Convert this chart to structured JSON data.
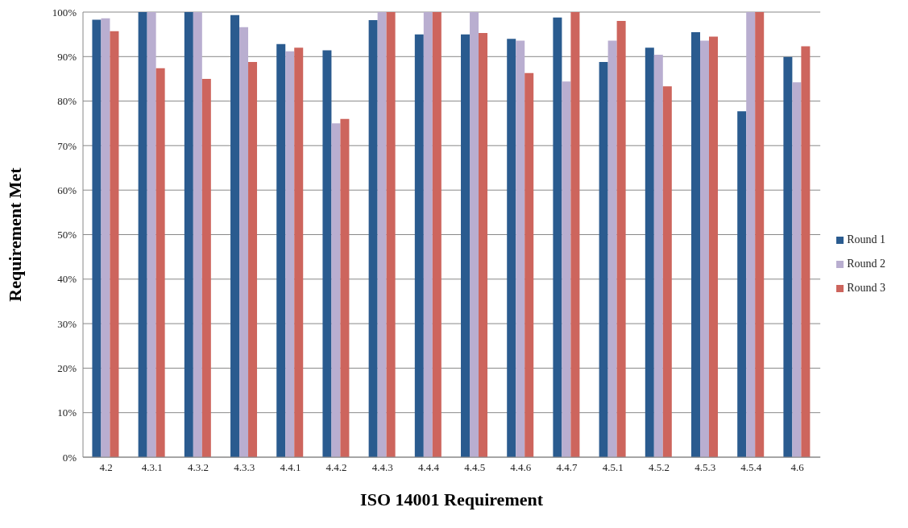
{
  "chart_data": {
    "type": "bar",
    "xlabel": "ISO 14001 Requirement",
    "ylabel": "Requirement Met",
    "categories": [
      "4.2",
      "4.3.1",
      "4.3.2",
      "4.3.3",
      "4.4.1",
      "4.4.2",
      "4.4.3",
      "4.4.4",
      "4.4.5",
      "4.4.6",
      "4.4.7",
      "4.5.1",
      "4.5.2",
      "4.5.3",
      "4.5.4",
      "4.6"
    ],
    "series": [
      {
        "name": "Round 1",
        "color": "#2a5b8f",
        "values": [
          98.3,
          100,
          100,
          99.3,
          92.8,
          91.4,
          98.2,
          95,
          95,
          94,
          98.8,
          88.8,
          92,
          95.5,
          77.7,
          89.9
        ]
      },
      {
        "name": "Round 2",
        "color": "#b9aed0",
        "values": [
          98.6,
          100,
          100,
          96.6,
          91.2,
          75,
          100,
          100,
          100,
          93.6,
          84.4,
          93.6,
          90.4,
          93.6,
          100,
          84.2
        ]
      },
      {
        "name": "Round 3",
        "color": "#cd655d",
        "values": [
          95.7,
          87.4,
          85,
          88.8,
          92,
          76,
          100,
          100,
          95.3,
          86.3,
          100,
          98,
          83.3,
          94.5,
          100,
          92.3
        ]
      }
    ],
    "ylim": [
      0,
      100
    ],
    "yticks": [
      {
        "value": 0,
        "label": "0%"
      },
      {
        "value": 10,
        "label": "10%"
      },
      {
        "value": 20,
        "label": "20%"
      },
      {
        "value": 30,
        "label": "30%"
      },
      {
        "value": 40,
        "label": "40%"
      },
      {
        "value": 50,
        "label": "50%"
      },
      {
        "value": 60,
        "label": "60%"
      },
      {
        "value": 70,
        "label": "70%"
      },
      {
        "value": 80,
        "label": "80%"
      },
      {
        "value": 90,
        "label": "90%"
      },
      {
        "value": 100,
        "label": "100%"
      }
    ],
    "grid": "y",
    "legend": "right"
  }
}
